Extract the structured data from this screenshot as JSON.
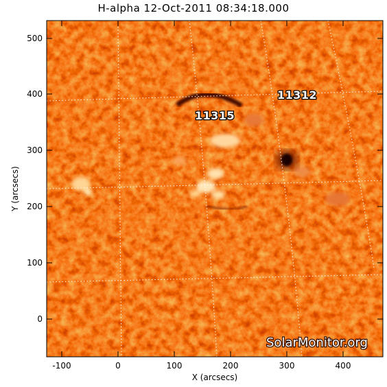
{
  "title": "H-alpha 12-Oct-2011 08:34:18.000",
  "xlabel": "X (arcsecs)",
  "ylabel": "Y (arcsecs)",
  "x_ticks": [
    "-100",
    "0",
    "100",
    "200",
    "300",
    "400"
  ],
  "y_ticks": [
    "0",
    "100",
    "200",
    "300",
    "400",
    "500"
  ],
  "regions": [
    {
      "label": "11315"
    },
    {
      "label": "11312"
    }
  ],
  "watermark": "SolarMonitor.org",
  "colors": {
    "background": "#c8400c",
    "bright": "#ffe6a8",
    "dark": "#3a0700",
    "grid": "#ffffff"
  }
}
